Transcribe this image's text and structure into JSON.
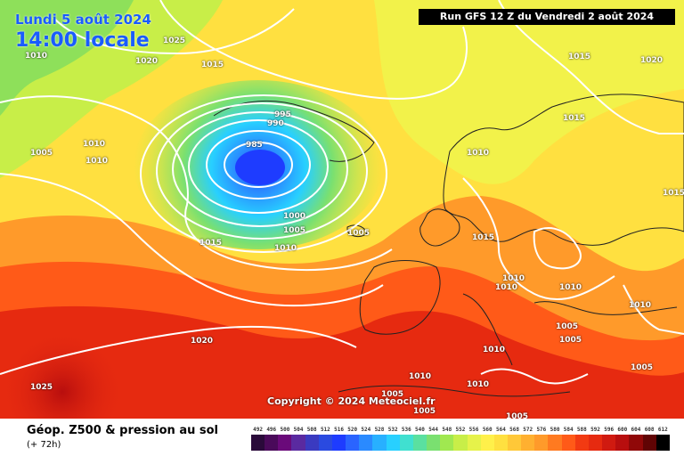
{
  "header": {
    "date": "Lundi 5 août 2024",
    "time": "14:00 locale"
  },
  "run_info": "Run GFS 12 Z du Vendredi 2 août 2024",
  "copyright": "Copyright © 2024 Meteociel.fr",
  "footer": {
    "product": "Géop. Z500 & pression au sol",
    "horizon": "(+ 72h)"
  },
  "colors": {
    "deep_blue": "#1e3cff",
    "cyan": "#28c8ff",
    "green": "#8ee05a",
    "yellow": "#f2f24a",
    "orange": "#ff9a2a",
    "red": "#ee2a10",
    "dark_red": "#b80e0e"
  },
  "legend": {
    "values": [
      "492",
      "496",
      "500",
      "504",
      "508",
      "512",
      "516",
      "520",
      "524",
      "528",
      "532",
      "536",
      "540",
      "544",
      "548",
      "552",
      "556",
      "560",
      "564",
      "568",
      "572",
      "576",
      "580",
      "584",
      "588",
      "592",
      "596",
      "600",
      "604",
      "608",
      "612"
    ],
    "colors": [
      "#2a0a3a",
      "#4a0a5a",
      "#6a0a7a",
      "#5a2aa0",
      "#3a3ac0",
      "#2a4ae0",
      "#1e3cff",
      "#2a64ff",
      "#2a8aff",
      "#28b0ff",
      "#28d0ff",
      "#40e0d0",
      "#5ae0a0",
      "#7ae070",
      "#a0e850",
      "#c8ee48",
      "#e6f24a",
      "#fff04a",
      "#ffe040",
      "#ffc838",
      "#ffb030",
      "#ff9a2a",
      "#ff7a20",
      "#ff5a18",
      "#f23a12",
      "#e62a10",
      "#d01a10",
      "#b80e0e",
      "#900808",
      "#600404",
      "#000000"
    ]
  },
  "isobars": [
    "1025",
    "1010",
    "1020",
    "1015",
    "995",
    "990",
    "985",
    "1010",
    "1005",
    "1010",
    "1000",
    "1005",
    "1015",
    "1010",
    "1005",
    "1020",
    "1025",
    "1015",
    "1020",
    "1015",
    "1010",
    "1015",
    "1015",
    "1010",
    "1010",
    "1010",
    "1010",
    "1005",
    "1005",
    "1010",
    "1005",
    "1010",
    "1010",
    "1005",
    "1005",
    "1005"
  ]
}
